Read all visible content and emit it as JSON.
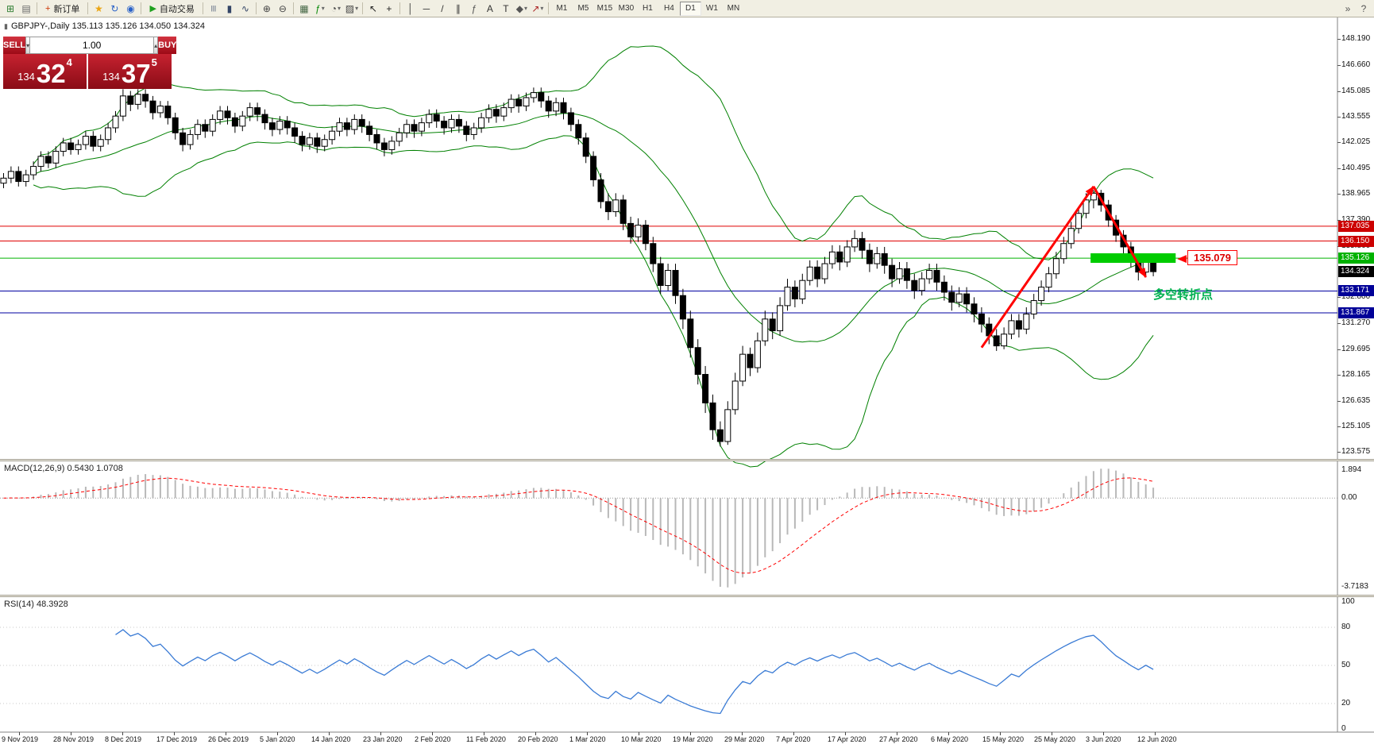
{
  "toolbar": {
    "items": [
      {
        "t": "icon",
        "name": "new-chart-icon",
        "g": "⊞",
        "c": "#2e7d32"
      },
      {
        "t": "icon",
        "name": "chart-profiles-icon",
        "g": "▤",
        "c": "#666666"
      },
      {
        "t": "sep"
      },
      {
        "t": "button",
        "name": "new-order-button",
        "label": "新订单",
        "g": "+",
        "c": "#cc3300"
      },
      {
        "t": "sep"
      },
      {
        "t": "icon",
        "name": "favorites-icon",
        "g": "★",
        "c": "#eba513"
      },
      {
        "t": "icon",
        "name": "refresh-icon",
        "g": "↻",
        "c": "#2a62c8"
      },
      {
        "t": "icon",
        "name": "data-window-icon",
        "g": "◉",
        "c": "#2a62c8"
      },
      {
        "t": "sep"
      },
      {
        "t": "button",
        "name": "auto-trading-button",
        "label": "自动交易",
        "g": "▶",
        "c": "#1fa11f"
      },
      {
        "t": "sep"
      },
      {
        "t": "icon",
        "name": "bar-chart-icon",
        "g": "|||",
        "c": "#334466"
      },
      {
        "t": "icon",
        "name": "candle-chart-icon",
        "g": "▮",
        "c": "#334466"
      },
      {
        "t": "icon",
        "name": "line-chart-icon",
        "g": "∿",
        "c": "#334466"
      },
      {
        "t": "sep"
      },
      {
        "t": "icon",
        "name": "zoom-in-icon",
        "g": "⊕",
        "c": "#444444"
      },
      {
        "t": "icon",
        "name": "zoom-out-icon",
        "g": "⊖",
        "c": "#444444"
      },
      {
        "t": "sep"
      },
      {
        "t": "icon",
        "name": "tile-windows-icon",
        "g": "▦",
        "c": "#446644"
      },
      {
        "t": "icon",
        "name": "indicators-icon",
        "g": "ƒ",
        "c": "#0a8a0a",
        "drop": true
      },
      {
        "t": "icon",
        "name": "periods-icon",
        "g": "◔",
        "c": "#444444",
        "drop": true
      },
      {
        "t": "icon",
        "name": "templates-icon",
        "g": "▨",
        "c": "#444444",
        "drop": true
      },
      {
        "t": "sep"
      },
      {
        "t": "icon",
        "name": "cursor-icon",
        "g": "↖",
        "c": "#222222"
      },
      {
        "t": "icon",
        "name": "crosshair-icon",
        "g": "+",
        "c": "#222222"
      },
      {
        "t": "sep"
      },
      {
        "t": "icon",
        "name": "vertical-line-icon",
        "g": "│",
        "c": "#333333"
      },
      {
        "t": "icon",
        "name": "horizontal-line-icon",
        "g": "─",
        "c": "#333333"
      },
      {
        "t": "icon",
        "name": "trendline-icon",
        "g": "/",
        "c": "#333333"
      },
      {
        "t": "icon",
        "name": "equidistant-channel-icon",
        "g": "∥",
        "c": "#333333"
      },
      {
        "t": "icon",
        "name": "fibonacci-icon",
        "g": "ƒ",
        "c": "#555555"
      },
      {
        "t": "icon",
        "name": "text-icon",
        "g": "A",
        "c": "#333333"
      },
      {
        "t": "icon",
        "name": "text-label-icon",
        "g": "T",
        "c": "#333333"
      },
      {
        "t": "icon",
        "name": "shapes-icon",
        "g": "◆",
        "c": "#555555",
        "drop": true
      },
      {
        "t": "icon",
        "name": "arrows-icon",
        "g": "↗",
        "c": "#aa2222",
        "drop": true
      },
      {
        "t": "sep"
      }
    ],
    "timeframes": {
      "labels": [
        "M1",
        "M5",
        "M15",
        "M30",
        "H1",
        "H4",
        "D1",
        "W1",
        "MN"
      ],
      "active": "D1"
    },
    "right_icons": [
      {
        "name": "toolbar-overflow-icon",
        "g": "»"
      },
      {
        "name": "help-icon",
        "g": "?"
      }
    ]
  },
  "chart": {
    "title": "GBPJPY-,Daily 135.113 135.126 134.050 134.324",
    "title_icon": "▮"
  },
  "trade_panel": {
    "sell_label": "SELL",
    "buy_label": "BUY",
    "volume": "1.00",
    "spin_down": "▾",
    "spin_up": "▴",
    "sell": {
      "prefix": "134",
      "big": "32",
      "sup": "4"
    },
    "buy": {
      "prefix": "134",
      "big": "37",
      "sup": "5"
    }
  },
  "panes": {
    "macd_label": "MACD(12,26,9) 0.5430 1.0708",
    "rsi_label": "RSI(14) 48.3928"
  },
  "price_axis": [
    "148.190",
    "146.660",
    "145.085",
    "143.555",
    "142.025",
    "140.495",
    "138.965",
    "137.390",
    "135.860",
    "132.800",
    "131.270",
    "129.695",
    "128.165",
    "126.635",
    "125.105",
    "123.575"
  ],
  "price_badges": [
    {
      "text": "137.035",
      "value": 137.035,
      "bg": "#CC0000"
    },
    {
      "text": "136.150",
      "value": 136.15,
      "bg": "#CC0000"
    },
    {
      "text": "135.126",
      "value": 135.126,
      "bg": "#00B200"
    },
    {
      "text": "134.324",
      "value": 134.324,
      "bg": "#000000"
    },
    {
      "text": "133.171",
      "value": 133.171,
      "bg": "#000098"
    },
    {
      "text": "131.867",
      "value": 131.867,
      "bg": "#000098"
    }
  ],
  "macd_axis": [
    "1.894",
    "0.00",
    "-3.7183"
  ],
  "rsi_axis": [
    "100",
    "80",
    "50",
    "20",
    "0"
  ],
  "date_axis": [
    "9 Nov 2019",
    "28 Nov 2019",
    "8 Dec 2019",
    "17 Dec 2019",
    "26 Dec 2019",
    "5 Jan 2020",
    "14 Jan 2020",
    "23 Jan 2020",
    "2 Feb 2020",
    "11 Feb 2020",
    "20 Feb 2020",
    "1 Mar 2020",
    "10 Mar 2020",
    "19 Mar 2020",
    "29 Mar 2020",
    "7 Apr 2020",
    "17 Apr 2020",
    "27 Apr 2020",
    "6 May 2020",
    "15 May 2020",
    "25 May 2020",
    "3 Jun 2020",
    "12 Jun 2020"
  ],
  "chart_data": {
    "type": "candlestick",
    "symbol": "GBPJPY-",
    "timeframe": "Daily",
    "ohlc_current": {
      "open": "135.113",
      "high": "135.126",
      "low": "134.050",
      "close": "134.324"
    },
    "indicators": {
      "bollinger": {
        "period": 20,
        "deviation": 2
      },
      "macd": {
        "fast": 12,
        "slow": 26,
        "signal": 9,
        "values": "0.5430 1.0708"
      },
      "rsi": {
        "period": 14,
        "value": "48.3928"
      }
    },
    "colors": {
      "level_red": "#E00000",
      "level_green": "#00B200",
      "level_blue": "#0000A0",
      "bollinger": "#008000",
      "macd_signal": "#FF0000",
      "macd_histogram": "#B8B8B8",
      "rsi_line": "#3A7BD5",
      "annotation_red": "#FF0000",
      "green_box": "#00CC00",
      "turning_point_green": "#00B050"
    },
    "levels": [
      {
        "price": 137.035,
        "color": "#E00000"
      },
      {
        "price": 136.15,
        "color": "#E00000"
      },
      {
        "price": 135.126,
        "color": "#00B200"
      },
      {
        "price": 133.171,
        "color": "#0000A0"
      },
      {
        "price": 131.867,
        "color": "#0000A0"
      }
    ],
    "annotations": {
      "price_callout": {
        "text": "135.079",
        "price": 135.079
      },
      "turning_point": {
        "text": "多空转折点"
      },
      "green_box": {
        "from_candle": 145.6,
        "to_candle": 157,
        "price_top": 135.42,
        "price_bottom": 134.85
      },
      "trend_up": {
        "from_candle": 131,
        "from_price": 129.8,
        "to_candle": 146,
        "to_price": 139.4
      },
      "trend_down": {
        "from_candle": 146,
        "from_price": 139.4,
        "to_candle": 153,
        "to_price": 134.0
      }
    },
    "candles": [
      [
        139.6,
        140.2,
        139.3,
        139.9
      ],
      [
        139.9,
        140.6,
        139.6,
        140.3
      ],
      [
        140.3,
        140.6,
        139.4,
        139.7
      ],
      [
        139.7,
        140.4,
        139.4,
        140.1
      ],
      [
        140.1,
        140.9,
        139.8,
        140.6
      ],
      [
        140.6,
        141.5,
        140.3,
        141.2
      ],
      [
        141.2,
        141.5,
        140.5,
        140.8
      ],
      [
        140.8,
        141.8,
        140.5,
        141.5
      ],
      [
        141.5,
        142.3,
        141.2,
        142.0
      ],
      [
        142.0,
        142.3,
        141.3,
        141.6
      ],
      [
        141.6,
        142.2,
        141.3,
        141.9
      ],
      [
        141.9,
        142.7,
        141.6,
        142.4
      ],
      [
        142.4,
        142.7,
        141.5,
        141.8
      ],
      [
        141.8,
        142.5,
        141.5,
        142.2
      ],
      [
        142.2,
        143.2,
        141.9,
        142.9
      ],
      [
        142.9,
        143.9,
        142.6,
        143.6
      ],
      [
        143.6,
        145.2,
        143.3,
        144.8
      ],
      [
        144.8,
        145.1,
        143.9,
        144.3
      ],
      [
        144.3,
        145.2,
        144.0,
        144.9
      ],
      [
        144.9,
        145.2,
        144.1,
        144.5
      ],
      [
        144.5,
        144.8,
        143.4,
        143.8
      ],
      [
        143.8,
        144.5,
        143.5,
        144.2
      ],
      [
        144.2,
        144.5,
        143.1,
        143.5
      ],
      [
        143.5,
        143.8,
        142.2,
        142.6
      ],
      [
        142.6,
        142.9,
        141.5,
        141.9
      ],
      [
        141.9,
        142.8,
        141.6,
        142.5
      ],
      [
        142.5,
        143.4,
        142.2,
        143.1
      ],
      [
        143.1,
        143.4,
        142.3,
        142.7
      ],
      [
        142.7,
        143.7,
        142.4,
        143.4
      ],
      [
        143.4,
        144.2,
        143.1,
        143.9
      ],
      [
        143.9,
        144.2,
        143.1,
        143.5
      ],
      [
        143.5,
        143.8,
        142.6,
        143.0
      ],
      [
        143.0,
        143.9,
        142.7,
        143.6
      ],
      [
        143.6,
        144.4,
        143.3,
        144.1
      ],
      [
        144.1,
        144.4,
        143.3,
        143.7
      ],
      [
        143.7,
        144.0,
        142.8,
        143.2
      ],
      [
        143.2,
        143.5,
        142.4,
        142.8
      ],
      [
        142.8,
        143.6,
        142.5,
        143.3
      ],
      [
        143.3,
        143.6,
        142.5,
        142.9
      ],
      [
        142.9,
        143.2,
        142.0,
        142.4
      ],
      [
        142.4,
        142.7,
        141.5,
        141.9
      ],
      [
        141.9,
        142.6,
        141.6,
        142.3
      ],
      [
        142.3,
        142.6,
        141.4,
        141.8
      ],
      [
        141.8,
        142.5,
        141.5,
        142.2
      ],
      [
        142.2,
        143.0,
        141.9,
        142.7
      ],
      [
        142.7,
        143.5,
        142.4,
        143.2
      ],
      [
        143.2,
        143.5,
        142.4,
        142.8
      ],
      [
        142.8,
        143.7,
        142.5,
        143.4
      ],
      [
        143.4,
        143.7,
        142.6,
        143.0
      ],
      [
        143.0,
        143.3,
        142.1,
        142.5
      ],
      [
        142.5,
        142.8,
        141.6,
        142.0
      ],
      [
        142.0,
        142.3,
        141.2,
        141.6
      ],
      [
        141.6,
        142.4,
        141.3,
        142.1
      ],
      [
        142.1,
        142.9,
        141.8,
        142.6
      ],
      [
        142.6,
        143.4,
        142.3,
        143.1
      ],
      [
        143.1,
        143.4,
        142.3,
        142.7
      ],
      [
        142.7,
        143.5,
        142.4,
        143.2
      ],
      [
        143.2,
        144.0,
        142.9,
        143.7
      ],
      [
        143.7,
        144.0,
        142.9,
        143.3
      ],
      [
        143.3,
        143.6,
        142.5,
        142.9
      ],
      [
        142.9,
        143.7,
        142.6,
        143.4
      ],
      [
        143.4,
        143.7,
        142.6,
        143.0
      ],
      [
        143.0,
        143.3,
        142.1,
        142.5
      ],
      [
        142.5,
        143.2,
        142.2,
        142.9
      ],
      [
        142.9,
        143.8,
        142.6,
        143.5
      ],
      [
        143.5,
        144.3,
        143.2,
        144.0
      ],
      [
        144.0,
        144.3,
        143.2,
        143.6
      ],
      [
        143.6,
        144.4,
        143.3,
        144.1
      ],
      [
        144.1,
        144.9,
        143.8,
        144.6
      ],
      [
        144.6,
        144.9,
        143.8,
        144.2
      ],
      [
        144.2,
        145.0,
        143.9,
        144.7
      ],
      [
        144.7,
        145.3,
        144.4,
        145.0
      ],
      [
        145.0,
        145.3,
        144.1,
        144.5
      ],
      [
        144.5,
        144.8,
        143.5,
        143.9
      ],
      [
        143.9,
        144.7,
        143.6,
        144.4
      ],
      [
        144.4,
        144.7,
        143.4,
        143.8
      ],
      [
        143.8,
        144.1,
        142.7,
        143.1
      ],
      [
        143.1,
        143.4,
        141.9,
        142.3
      ],
      [
        142.3,
        142.6,
        140.8,
        141.2
      ],
      [
        141.2,
        141.5,
        139.4,
        139.8
      ],
      [
        139.8,
        140.2,
        138.1,
        138.5
      ],
      [
        138.5,
        139.0,
        137.4,
        137.9
      ],
      [
        137.9,
        139.0,
        137.6,
        138.6
      ],
      [
        138.6,
        138.9,
        136.8,
        137.2
      ],
      [
        137.2,
        137.6,
        136.0,
        136.4
      ],
      [
        136.4,
        137.5,
        136.1,
        137.1
      ],
      [
        137.1,
        137.4,
        135.6,
        136.0
      ],
      [
        136.0,
        136.4,
        134.3,
        134.8
      ],
      [
        134.8,
        135.2,
        133.0,
        133.5
      ],
      [
        133.5,
        134.8,
        133.2,
        134.4
      ],
      [
        134.4,
        134.8,
        132.4,
        132.9
      ],
      [
        132.9,
        133.3,
        130.9,
        131.5
      ],
      [
        131.5,
        132.0,
        129.2,
        129.8
      ],
      [
        129.8,
        130.3,
        127.6,
        128.2
      ],
      [
        128.2,
        128.7,
        125.9,
        126.5
      ],
      [
        126.5,
        127.0,
        124.3,
        124.9
      ],
      [
        124.9,
        125.4,
        123.9,
        124.2
      ],
      [
        124.2,
        126.6,
        124.0,
        126.1
      ],
      [
        126.1,
        128.3,
        125.8,
        127.8
      ],
      [
        127.8,
        129.9,
        127.5,
        129.4
      ],
      [
        129.4,
        129.8,
        128.1,
        128.6
      ],
      [
        128.6,
        130.7,
        128.3,
        130.2
      ],
      [
        130.2,
        132.0,
        129.9,
        131.5
      ],
      [
        131.5,
        131.9,
        130.3,
        130.8
      ],
      [
        130.8,
        132.8,
        130.5,
        132.3
      ],
      [
        132.3,
        133.9,
        132.0,
        133.4
      ],
      [
        133.4,
        133.8,
        132.2,
        132.7
      ],
      [
        132.7,
        134.2,
        132.4,
        133.8
      ],
      [
        133.8,
        135.0,
        133.5,
        134.6
      ],
      [
        134.6,
        135.0,
        133.4,
        133.9
      ],
      [
        133.9,
        135.2,
        133.6,
        134.8
      ],
      [
        134.8,
        135.9,
        134.5,
        135.5
      ],
      [
        135.5,
        135.9,
        134.4,
        134.9
      ],
      [
        134.9,
        136.2,
        134.6,
        135.8
      ],
      [
        135.8,
        136.8,
        135.5,
        136.3
      ],
      [
        136.3,
        136.7,
        135.1,
        135.6
      ],
      [
        135.6,
        136.0,
        134.3,
        134.8
      ],
      [
        134.8,
        135.8,
        134.5,
        135.4
      ],
      [
        135.4,
        135.8,
        134.2,
        134.7
      ],
      [
        134.7,
        135.1,
        133.4,
        133.9
      ],
      [
        133.9,
        134.9,
        133.6,
        134.5
      ],
      [
        134.5,
        134.9,
        133.3,
        133.8
      ],
      [
        133.8,
        134.2,
        132.7,
        133.2
      ],
      [
        133.2,
        134.3,
        132.9,
        133.9
      ],
      [
        133.9,
        134.8,
        133.6,
        134.4
      ],
      [
        134.4,
        134.8,
        133.2,
        133.7
      ],
      [
        133.7,
        134.1,
        132.6,
        133.1
      ],
      [
        133.1,
        133.5,
        132.0,
        132.5
      ],
      [
        132.5,
        133.4,
        132.2,
        133.0
      ],
      [
        133.0,
        133.4,
        131.9,
        132.4
      ],
      [
        132.4,
        132.8,
        131.3,
        131.8
      ],
      [
        131.8,
        132.2,
        130.7,
        131.2
      ],
      [
        131.2,
        131.6,
        130.0,
        130.5
      ],
      [
        130.5,
        130.9,
        129.6,
        129.9
      ],
      [
        129.9,
        131.0,
        129.7,
        130.6
      ],
      [
        130.6,
        131.8,
        130.3,
        131.4
      ],
      [
        131.4,
        131.8,
        130.4,
        130.9
      ],
      [
        130.9,
        132.2,
        130.6,
        131.8
      ],
      [
        131.8,
        133.0,
        131.5,
        132.6
      ],
      [
        132.6,
        133.8,
        132.3,
        133.4
      ],
      [
        133.4,
        134.6,
        133.1,
        134.2
      ],
      [
        134.2,
        135.5,
        133.9,
        135.1
      ],
      [
        135.1,
        136.4,
        134.8,
        136.0
      ],
      [
        136.0,
        137.3,
        135.7,
        136.9
      ],
      [
        136.9,
        138.2,
        136.6,
        137.8
      ],
      [
        137.8,
        139.0,
        137.5,
        138.6
      ],
      [
        138.6,
        139.2,
        138.1,
        139.0
      ],
      [
        139.0,
        139.2,
        137.9,
        138.3
      ],
      [
        138.3,
        138.6,
        137.0,
        137.4
      ],
      [
        137.4,
        137.7,
        136.1,
        136.5
      ],
      [
        136.5,
        136.8,
        135.4,
        135.8
      ],
      [
        135.8,
        136.1,
        134.6,
        135.0
      ],
      [
        135.0,
        135.3,
        133.8,
        134.3
      ],
      [
        134.3,
        135.3,
        134.0,
        135.0
      ],
      [
        135.113,
        135.126,
        134.05,
        134.324
      ]
    ]
  }
}
